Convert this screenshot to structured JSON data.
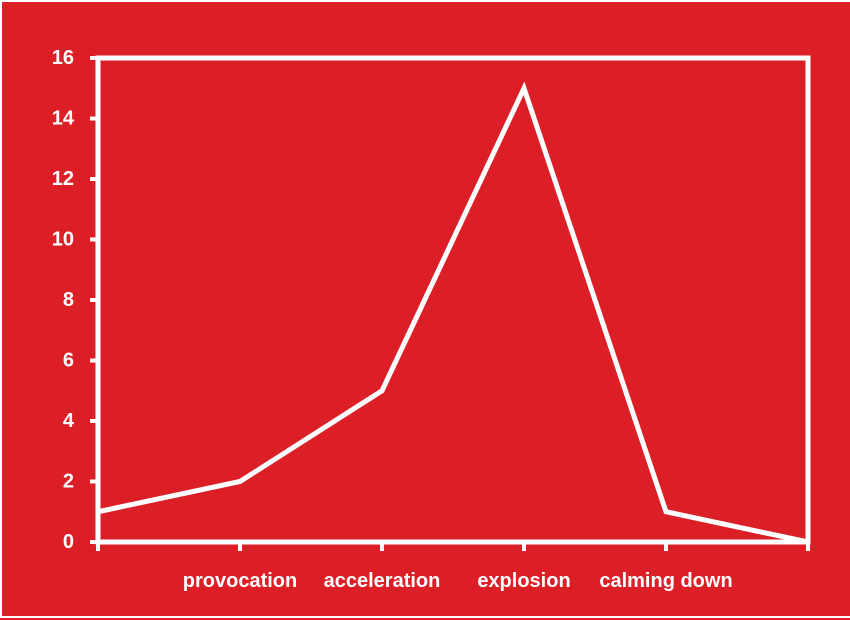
{
  "chart_data": {
    "type": "line",
    "title": "",
    "xlabel": "",
    "ylabel": "",
    "ylim": [
      0,
      16
    ],
    "yticks": [
      0,
      2,
      4,
      6,
      8,
      10,
      12,
      14,
      16
    ],
    "x_axis_labels": [
      "provocation",
      "acceleration",
      "explosion",
      "calming down"
    ],
    "series": [
      {
        "values": [
          1,
          2,
          5,
          15,
          1,
          0
        ]
      }
    ],
    "grid": false,
    "legend": "none",
    "colors": {
      "background": "#dc1f26",
      "line": "#ffffff",
      "axes": "#ffffff",
      "text": "#ffffff"
    }
  }
}
